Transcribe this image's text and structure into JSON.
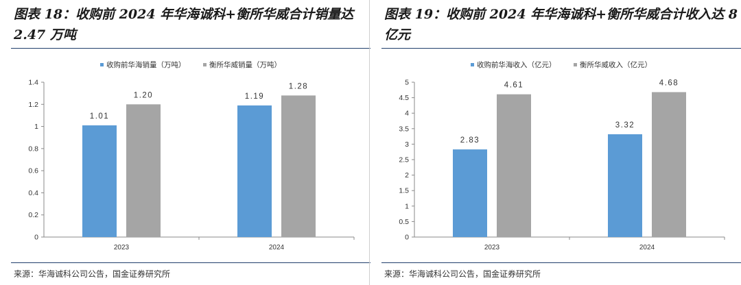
{
  "charts": [
    {
      "title": "图表 18：收购前 2024 年华海诚科+衡所华威合计销量达 2.47 万吨",
      "source": "来源：华海诚科公司公告，国金证券研究所"
    },
    {
      "title": "图表 19：收购前 2024 年华海诚科+衡所华威合计收入达 8 亿元",
      "source": "来源：华海诚科公司公告，国金证券研究所"
    }
  ],
  "chart_data": [
    {
      "type": "bar",
      "title": "图表 18：收购前 2024 年华海诚科+衡所华威合计销量达 2.47 万吨",
      "categories": [
        "2023",
        "2024"
      ],
      "series": [
        {
          "name": "收购前华海销量（万吨）",
          "color": "#5b9bd5",
          "values": [
            1.01,
            1.19
          ],
          "labels": [
            "1.01",
            "1.19"
          ]
        },
        {
          "name": "衡所华威销量（万吨）",
          "color": "#a5a5a5",
          "values": [
            1.2,
            1.28
          ],
          "labels": [
            "1.20",
            "1.28"
          ]
        }
      ],
      "ylim": [
        0,
        1.4
      ],
      "yticks": [
        "0",
        "0.2",
        "0.4",
        "0.6",
        "0.8",
        "1",
        "1.2",
        "1.4"
      ],
      "xlabel": "",
      "ylabel": "",
      "legend": "top",
      "grid": false
    },
    {
      "type": "bar",
      "title": "图表 19：收购前 2024 年华海诚科+衡所华威合计收入达 8 亿元",
      "categories": [
        "2023",
        "2024"
      ],
      "series": [
        {
          "name": "收购前华海收入（亿元）",
          "color": "#5b9bd5",
          "values": [
            2.83,
            3.32
          ],
          "labels": [
            "2.83",
            "3.32"
          ]
        },
        {
          "name": "衡所华威收入（亿元）",
          "color": "#a5a5a5",
          "values": [
            4.61,
            4.68
          ],
          "labels": [
            "4.61",
            "4.68"
          ]
        }
      ],
      "ylim": [
        0,
        5
      ],
      "yticks": [
        "0",
        "0.5",
        "1",
        "1.5",
        "2",
        "2.5",
        "3",
        "3.5",
        "4",
        "4.5",
        "5"
      ],
      "xlabel": "",
      "ylabel": "",
      "legend": "top",
      "grid": false
    }
  ]
}
